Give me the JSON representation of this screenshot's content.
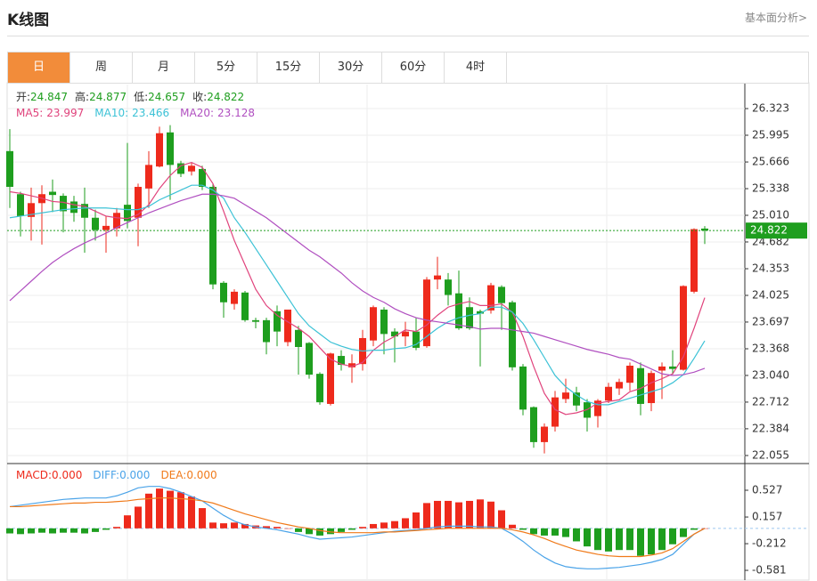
{
  "header": {
    "title": "K线图",
    "link": "基本面分析>"
  },
  "tabs": [
    "日",
    "周",
    "月",
    "5分",
    "15分",
    "30分",
    "60分",
    "4时"
  ],
  "active_tab": 0,
  "chart_data": [
    {
      "type": "candlestick",
      "colors": {
        "up": "#ee2a1c",
        "down": "#1e9e1e"
      },
      "ohlc_labels": [
        "开:",
        "高:",
        "低:",
        "收:"
      ],
      "open": [
        25.8,
        25.27,
        24.99,
        25.16,
        25.3,
        25.25,
        25.18,
        25.15,
        24.98,
        24.83,
        24.85,
        25.14,
        24.98,
        25.34,
        25.61,
        26.03,
        25.65,
        25.55,
        25.58,
        25.36,
        24.18,
        23.92,
        24.06,
        23.72,
        23.72,
        23.83,
        23.45,
        23.6,
        23.44,
        23.06,
        22.69,
        23.28,
        23.14,
        23.18,
        23.47,
        23.85,
        23.58,
        23.52,
        23.58,
        23.4,
        24.22,
        24.22,
        24.05,
        23.88,
        23.83,
        23.84,
        24.13,
        23.94,
        23.15,
        22.65,
        22.22,
        22.41,
        22.75,
        22.83,
        22.71,
        22.54,
        22.73,
        22.88,
        22.95,
        23.13,
        22.7,
        23.1,
        23.15,
        23.11,
        24.07,
        24.847
      ],
      "high": [
        26.07,
        25.3,
        25.35,
        25.38,
        25.45,
        25.28,
        25.25,
        25.35,
        25.08,
        25.0,
        25.1,
        25.9,
        25.4,
        25.8,
        26.1,
        26.12,
        25.68,
        25.66,
        25.62,
        25.4,
        24.2,
        24.1,
        24.08,
        23.75,
        23.75,
        23.9,
        23.85,
        23.65,
        23.45,
        23.08,
        23.32,
        23.35,
        23.3,
        23.6,
        23.9,
        23.88,
        23.62,
        23.7,
        23.75,
        24.25,
        24.5,
        24.3,
        24.33,
        24.0,
        23.85,
        24.18,
        24.15,
        23.96,
        23.18,
        22.66,
        22.45,
        22.85,
        23.0,
        22.9,
        22.75,
        22.75,
        22.95,
        23.0,
        23.2,
        23.2,
        23.1,
        23.2,
        23.35,
        24.15,
        24.85,
        24.877
      ],
      "low": [
        25.1,
        24.75,
        24.7,
        24.65,
        25.05,
        24.8,
        24.93,
        24.55,
        24.7,
        24.55,
        24.75,
        24.85,
        24.63,
        25.1,
        25.6,
        25.2,
        25.48,
        25.5,
        25.32,
        24.1,
        23.75,
        23.85,
        23.7,
        23.62,
        23.3,
        23.4,
        23.4,
        23.05,
        23.0,
        22.68,
        22.67,
        23.1,
        22.95,
        23.1,
        23.4,
        23.3,
        23.2,
        23.4,
        23.35,
        23.38,
        24.1,
        23.9,
        23.6,
        23.6,
        23.15,
        23.8,
        23.6,
        23.1,
        22.55,
        22.15,
        22.08,
        22.35,
        22.7,
        22.6,
        22.35,
        22.4,
        22.7,
        22.8,
        22.85,
        22.55,
        22.6,
        22.75,
        23.05,
        23.1,
        24.05,
        24.657
      ],
      "close": [
        25.36,
        25.0,
        25.16,
        25.27,
        25.26,
        25.06,
        25.04,
        24.98,
        24.83,
        24.88,
        25.04,
        24.94,
        25.36,
        25.63,
        26.02,
        25.63,
        25.52,
        25.62,
        25.36,
        24.16,
        23.94,
        24.07,
        23.72,
        23.7,
        23.45,
        23.58,
        23.85,
        23.39,
        23.05,
        22.71,
        23.31,
        23.17,
        23.19,
        23.5,
        23.88,
        23.55,
        23.52,
        23.58,
        23.38,
        24.22,
        24.27,
        24.03,
        23.62,
        23.62,
        23.8,
        24.15,
        23.93,
        23.14,
        22.62,
        22.22,
        22.41,
        22.77,
        22.83,
        22.67,
        22.52,
        22.73,
        22.9,
        22.96,
        23.16,
        22.69,
        23.07,
        23.15,
        23.12,
        24.14,
        24.84,
        24.822
      ],
      "series": [
        {
          "name": "MA5:",
          "color": "#e0437c",
          "values": [
            25.3,
            25.28,
            25.25,
            25.22,
            25.18,
            25.17,
            25.14,
            25.12,
            25.06,
            25.0,
            24.98,
            24.97,
            25.02,
            25.14,
            25.34,
            25.5,
            25.62,
            25.66,
            25.6,
            25.4,
            25.06,
            24.7,
            24.4,
            24.1,
            23.9,
            23.78,
            23.7,
            23.62,
            23.52,
            23.38,
            23.24,
            23.18,
            23.15,
            23.2,
            23.35,
            23.45,
            23.52,
            23.6,
            23.58,
            23.66,
            23.78,
            23.88,
            23.92,
            23.95,
            23.9,
            23.9,
            23.92,
            23.82,
            23.52,
            23.15,
            22.82,
            22.62,
            22.56,
            22.58,
            22.62,
            22.7,
            22.72,
            22.74,
            22.84,
            22.88,
            22.95,
            23.0,
            23.06,
            23.27,
            23.62,
            23.997
          ]
        },
        {
          "name": "MA10:",
          "color": "#3cc2d6",
          "values": [
            24.98,
            25.0,
            25.02,
            25.04,
            25.06,
            25.08,
            25.09,
            25.1,
            25.1,
            25.1,
            25.09,
            25.08,
            25.08,
            25.12,
            25.2,
            25.26,
            25.32,
            25.38,
            25.38,
            25.32,
            25.22,
            24.98,
            24.8,
            24.6,
            24.4,
            24.2,
            24.0,
            23.8,
            23.65,
            23.55,
            23.45,
            23.4,
            23.36,
            23.34,
            23.35,
            23.35,
            23.37,
            23.38,
            23.42,
            23.52,
            23.62,
            23.7,
            23.75,
            23.78,
            23.8,
            23.88,
            23.88,
            23.82,
            23.68,
            23.48,
            23.26,
            23.04,
            22.9,
            22.8,
            22.72,
            22.68,
            22.68,
            22.72,
            22.76,
            22.8,
            22.84,
            22.88,
            22.95,
            23.05,
            23.25,
            23.466
          ]
        },
        {
          "name": "MA20:",
          "color": "#b04fc0",
          "values": [
            23.96,
            24.08,
            24.2,
            24.32,
            24.43,
            24.52,
            24.6,
            24.67,
            24.73,
            24.79,
            24.86,
            24.92,
            24.98,
            25.04,
            25.09,
            25.14,
            25.19,
            25.23,
            25.27,
            25.27,
            25.25,
            25.22,
            25.14,
            25.06,
            24.98,
            24.88,
            24.78,
            24.68,
            24.58,
            24.5,
            24.4,
            24.3,
            24.18,
            24.08,
            24.0,
            23.94,
            23.86,
            23.8,
            23.75,
            23.72,
            23.7,
            23.68,
            23.66,
            23.64,
            23.61,
            23.62,
            23.62,
            23.6,
            23.58,
            23.56,
            23.52,
            23.48,
            23.44,
            23.4,
            23.36,
            23.33,
            23.3,
            23.26,
            23.24,
            23.18,
            23.12,
            23.06,
            23.04,
            23.05,
            23.08,
            23.128
          ]
        }
      ],
      "ylim": [
        21.967,
        26.619
      ],
      "yticks": [
        26.323,
        25.995,
        25.666,
        25.338,
        {
          "value": 25.01,
          "label": "25.010"
        },
        24.682,
        24.353,
        24.025,
        23.697,
        23.368,
        {
          "value": 23.04,
          "label": "23.040"
        },
        22.712,
        22.384,
        22.055
      ],
      "grid": true
    },
    {
      "type": "macd",
      "colors": {
        "up": "#ee2a1c",
        "down": "#1e9e1e"
      },
      "series": [
        {
          "name": "MACD:",
          "color": "#ee2a1c",
          "value_label": "0.000",
          "values": [
            -0.07,
            -0.08,
            -0.07,
            -0.06,
            -0.07,
            -0.06,
            -0.06,
            -0.07,
            -0.05,
            -0.02,
            0.02,
            0.18,
            0.3,
            0.48,
            0.55,
            0.52,
            0.5,
            0.44,
            0.28,
            0.08,
            0.07,
            0.08,
            0.06,
            0.04,
            0.03,
            0.02,
            0.0,
            -0.05,
            -0.08,
            -0.1,
            -0.08,
            -0.05,
            -0.02,
            0.02,
            0.06,
            0.08,
            0.1,
            0.14,
            0.22,
            0.35,
            0.38,
            0.38,
            0.36,
            0.38,
            0.4,
            0.37,
            0.25,
            0.05,
            -0.02,
            -0.08,
            -0.1,
            -0.1,
            -0.12,
            -0.18,
            -0.25,
            -0.3,
            -0.32,
            -0.3,
            -0.3,
            -0.38,
            -0.36,
            -0.3,
            -0.22,
            -0.12,
            -0.02,
            0
          ]
        },
        {
          "name": "DIFF:",
          "color": "#4aa3e8",
          "value_label": "0.000",
          "values": [
            0.3,
            0.32,
            0.34,
            0.36,
            0.38,
            0.4,
            0.41,
            0.42,
            0.42,
            0.42,
            0.45,
            0.5,
            0.56,
            0.58,
            0.58,
            0.55,
            0.5,
            0.44,
            0.38,
            0.28,
            0.18,
            0.1,
            0.05,
            0.02,
            0,
            -0.02,
            -0.05,
            -0.08,
            -0.12,
            -0.15,
            -0.14,
            -0.13,
            -0.12,
            -0.1,
            -0.08,
            -0.06,
            -0.04,
            -0.03,
            -0.02,
            0,
            0.02,
            0.03,
            0.03,
            0.03,
            0.02,
            0.02,
            0,
            -0.08,
            -0.18,
            -0.3,
            -0.4,
            -0.48,
            -0.53,
            -0.55,
            -0.56,
            -0.56,
            -0.55,
            -0.54,
            -0.52,
            -0.5,
            -0.47,
            -0.43,
            -0.36,
            -0.22,
            -0.08,
            0
          ]
        },
        {
          "name": "DEA:",
          "color": "#f07a1a",
          "value_label": "0.000",
          "values": [
            0.3,
            0.3,
            0.31,
            0.32,
            0.33,
            0.34,
            0.35,
            0.35,
            0.36,
            0.36,
            0.37,
            0.38,
            0.4,
            0.41,
            0.42,
            0.42,
            0.41,
            0.4,
            0.38,
            0.35,
            0.3,
            0.25,
            0.2,
            0.16,
            0.12,
            0.08,
            0.05,
            0.02,
            0,
            -0.03,
            -0.05,
            -0.06,
            -0.06,
            -0.06,
            -0.06,
            -0.05,
            -0.05,
            -0.04,
            -0.03,
            -0.02,
            -0.01,
            0,
            0,
            0,
            0,
            0,
            0,
            -0.02,
            -0.05,
            -0.09,
            -0.14,
            -0.2,
            -0.25,
            -0.3,
            -0.33,
            -0.36,
            -0.38,
            -0.39,
            -0.39,
            -0.39,
            -0.37,
            -0.34,
            -0.28,
            -0.18,
            -0.08,
            0
          ]
        }
      ],
      "ylim": [
        -0.716,
        0.884
      ],
      "yticks": [
        0.527,
        0.157,
        -0.212,
        -0.581
      ]
    }
  ]
}
